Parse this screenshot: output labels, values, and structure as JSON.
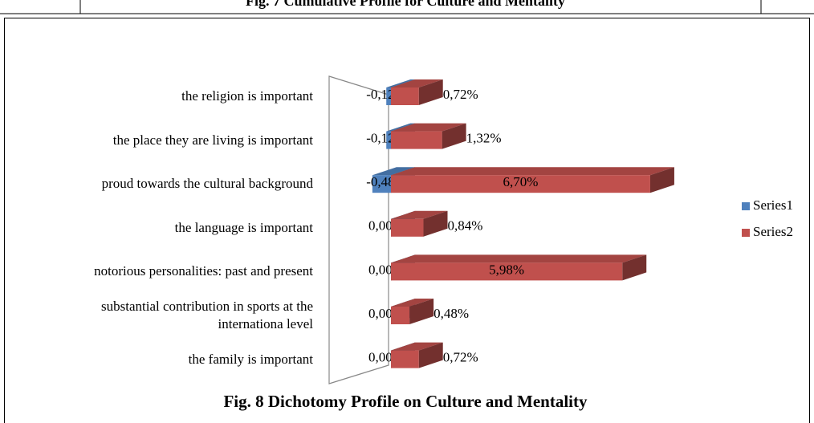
{
  "top_caption": "Fig. 7 Cumulative Profile for Culture and Mentality",
  "chart_data": {
    "type": "bar3d_horizontal",
    "title": "Fig. 8 Dichotomy Profile on Culture and Mentality",
    "categories": [
      "the religion is important",
      "the place they are living is important",
      "proud towards the cultural background",
      "the language is important",
      "notorious  personalities: past and present",
      "substantial contribution in sports at the\ninternationa level",
      "the family is important"
    ],
    "series": [
      {
        "name": "Series1",
        "color": "#4f81bd",
        "values": [
          -0.12,
          -0.12,
          -0.48,
          0,
          0,
          0,
          0
        ],
        "value_labels": [
          "-0,12%",
          "-0,12%",
          "-0,48%",
          "0,00%",
          "0,00%",
          "0,00%",
          "0,00%"
        ]
      },
      {
        "name": "Series2",
        "color": "#c0504d",
        "values": [
          0.72,
          1.32,
          6.7,
          0.84,
          5.98,
          0.48,
          0.72
        ],
        "value_labels": [
          "0,72%",
          "1,32%",
          "6,70%",
          "0,84%",
          "5,98%",
          "0,48%",
          "0,72%"
        ]
      }
    ],
    "legend": "right"
  }
}
